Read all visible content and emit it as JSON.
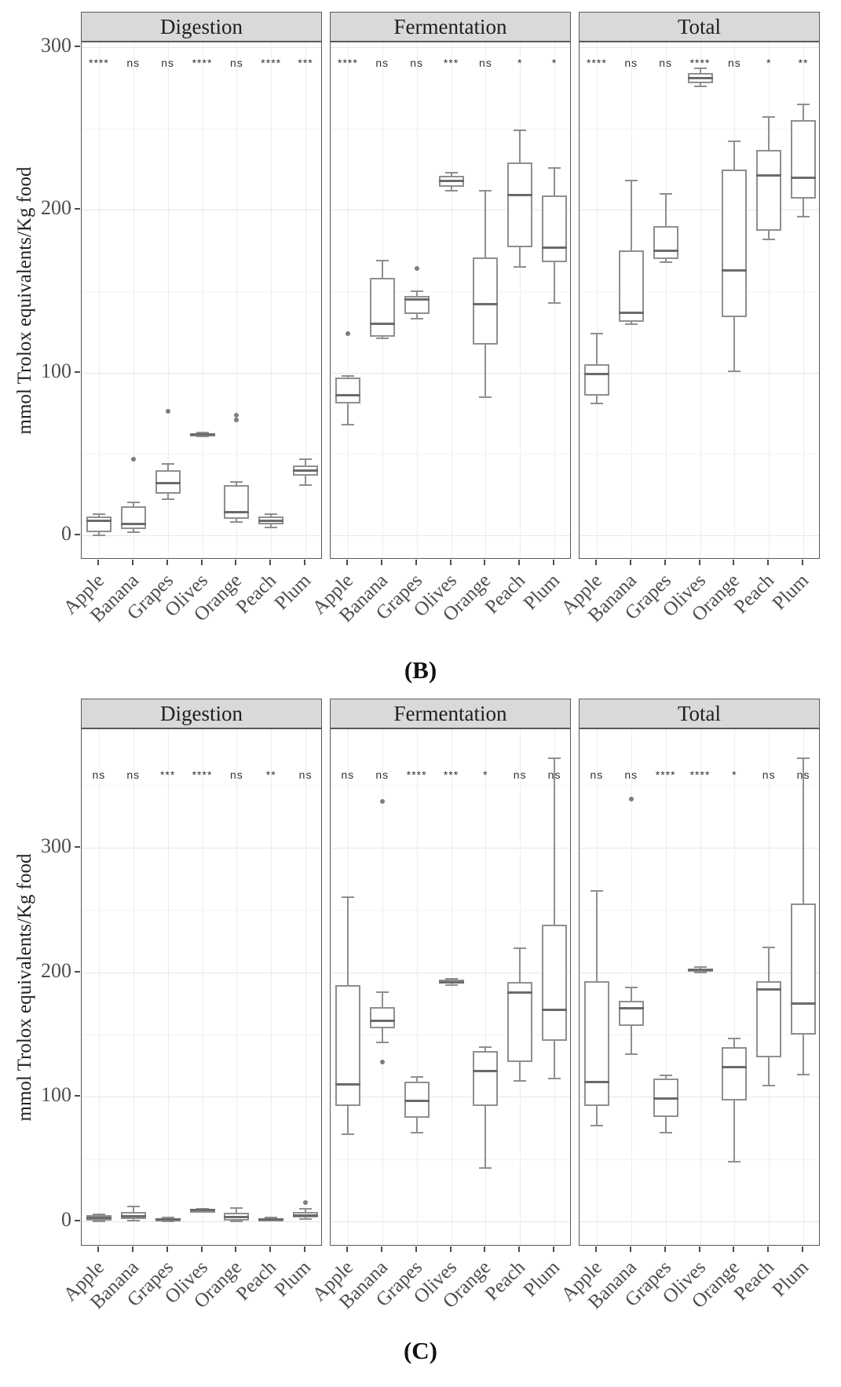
{
  "figure": {
    "ylabel": "mmol Trolox equivalents/Kg food",
    "categories": [
      "Apple",
      "Banana",
      "Grapes",
      "Olives",
      "Orange",
      "Peach",
      "Plum"
    ],
    "facet_labels": [
      "Digestion",
      "Fermentation",
      "Total"
    ]
  },
  "chart_data": [
    {
      "type": "boxplot",
      "panel_label": "(B)",
      "ylabel": "mmol Trolox equivalents/Kg food",
      "yticks": [
        0,
        100,
        200,
        300
      ],
      "ylim": [
        -15,
        303
      ],
      "sig_value": 290,
      "grid": "on",
      "facets": [
        {
          "label": "Digestion",
          "boxes": [
            {
              "category": "Apple",
              "sig": "****",
              "whislo": 0,
              "q1": 2,
              "med": 9,
              "q3": 11.5,
              "whishi": 13,
              "fliers": []
            },
            {
              "category": "Banana",
              "sig": "ns",
              "whislo": 2,
              "q1": 4,
              "med": 7,
              "q3": 18,
              "whishi": 20,
              "fliers": [
                47
              ]
            },
            {
              "category": "Grapes",
              "sig": "ns",
              "whislo": 22,
              "q1": 25.5,
              "med": 32,
              "q3": 40,
              "whishi": 44,
              "fliers": [
                76
              ]
            },
            {
              "category": "Olives",
              "sig": "****",
              "whislo": 61,
              "q1": 61.5,
              "med": 62,
              "q3": 62.5,
              "whishi": 63,
              "fliers": []
            },
            {
              "category": "Orange",
              "sig": "ns",
              "whislo": 8,
              "q1": 10,
              "med": 14,
              "q3": 31,
              "whishi": 33,
              "fliers": [
                71,
                74
              ]
            },
            {
              "category": "Peach",
              "sig": "****",
              "whislo": 5,
              "q1": 6.5,
              "med": 9,
              "q3": 11.5,
              "whishi": 13,
              "fliers": []
            },
            {
              "category": "Plum",
              "sig": "***",
              "whislo": 31,
              "q1": 36.5,
              "med": 40,
              "q3": 43,
              "whishi": 47,
              "fliers": []
            }
          ]
        },
        {
          "label": "Fermentation",
          "boxes": [
            {
              "category": "Apple",
              "sig": "****",
              "whislo": 68,
              "q1": 81,
              "med": 86,
              "q3": 97,
              "whishi": 98,
              "fliers": [
                124
              ]
            },
            {
              "category": "Banana",
              "sig": "ns",
              "whislo": 121,
              "q1": 122,
              "med": 130,
              "q3": 158,
              "whishi": 169,
              "fliers": []
            },
            {
              "category": "Grapes",
              "sig": "ns",
              "whislo": 133,
              "q1": 136,
              "med": 145,
              "q3": 147,
              "whishi": 150,
              "fliers": [
                164
              ]
            },
            {
              "category": "Olives",
              "sig": "***",
              "whislo": 212,
              "q1": 214,
              "med": 218,
              "q3": 221,
              "whishi": 223,
              "fliers": []
            },
            {
              "category": "Orange",
              "sig": "ns",
              "whislo": 85,
              "q1": 117,
              "med": 142,
              "q3": 171,
              "whishi": 212,
              "fliers": []
            },
            {
              "category": "Peach",
              "sig": "*",
              "whislo": 165,
              "q1": 177,
              "med": 209,
              "q3": 229,
              "whishi": 249,
              "fliers": []
            },
            {
              "category": "Plum",
              "sig": "*",
              "whislo": 143,
              "q1": 168,
              "med": 177,
              "q3": 209,
              "whishi": 226,
              "fliers": []
            }
          ]
        },
        {
          "label": "Total",
          "boxes": [
            {
              "category": "Apple",
              "sig": "****",
              "whislo": 81,
              "q1": 86,
              "med": 99,
              "q3": 105,
              "whishi": 124,
              "fliers": []
            },
            {
              "category": "Banana",
              "sig": "ns",
              "whislo": 130,
              "q1": 131,
              "med": 137,
              "q3": 175,
              "whishi": 218,
              "fliers": []
            },
            {
              "category": "Grapes",
              "sig": "ns",
              "whislo": 168,
              "q1": 170,
              "med": 175,
              "q3": 190,
              "whishi": 210,
              "fliers": []
            },
            {
              "category": "Olives",
              "sig": "****",
              "whislo": 276,
              "q1": 278,
              "med": 281,
              "q3": 284,
              "whishi": 287,
              "fliers": []
            },
            {
              "category": "Orange",
              "sig": "ns",
              "whislo": 101,
              "q1": 134,
              "med": 163,
              "q3": 225,
              "whishi": 242,
              "fliers": []
            },
            {
              "category": "Peach",
              "sig": "*",
              "whislo": 182,
              "q1": 187,
              "med": 221,
              "q3": 237,
              "whishi": 257,
              "fliers": []
            },
            {
              "category": "Plum",
              "sig": "**",
              "whislo": 196,
              "q1": 207,
              "med": 220,
              "q3": 255,
              "whishi": 265,
              "fliers": []
            }
          ]
        }
      ]
    },
    {
      "type": "boxplot",
      "panel_label": "(C)",
      "ylabel": "mmol Trolox equivalents/Kg food",
      "yticks": [
        0,
        100,
        200,
        300
      ],
      "ylim": [
        -20,
        395
      ],
      "sig_value": 358,
      "grid": "on",
      "facets": [
        {
          "label": "Digestion",
          "boxes": [
            {
              "category": "Apple",
              "sig": "ns",
              "whislo": 0,
              "q1": 1,
              "med": 3,
              "q3": 5,
              "whishi": 6,
              "fliers": []
            },
            {
              "category": "Banana",
              "sig": "ns",
              "whislo": 1,
              "q1": 2,
              "med": 4,
              "q3": 8,
              "whishi": 12,
              "fliers": []
            },
            {
              "category": "Grapes",
              "sig": "***",
              "whislo": 0,
              "q1": 0.5,
              "med": 1.5,
              "q3": 2.5,
              "whishi": 3,
              "fliers": []
            },
            {
              "category": "Olives",
              "sig": "****",
              "whislo": 8,
              "q1": 8.5,
              "med": 9,
              "q3": 9.5,
              "whishi": 10,
              "fliers": []
            },
            {
              "category": "Orange",
              "sig": "ns",
              "whislo": 0,
              "q1": 1,
              "med": 3.5,
              "q3": 7,
              "whishi": 11,
              "fliers": []
            },
            {
              "category": "Peach",
              "sig": "**",
              "whislo": 1,
              "q1": 1.5,
              "med": 2,
              "q3": 2.5,
              "whishi": 3,
              "fliers": []
            },
            {
              "category": "Plum",
              "sig": "ns",
              "whislo": 2,
              "q1": 3,
              "med": 5,
              "q3": 8,
              "whishi": 10,
              "fliers": [
                15
              ]
            }
          ]
        },
        {
          "label": "Fermentation",
          "boxes": [
            {
              "category": "Apple",
              "sig": "ns",
              "whislo": 70,
              "q1": 93,
              "med": 110,
              "q3": 190,
              "whishi": 260,
              "fliers": []
            },
            {
              "category": "Banana",
              "sig": "ns",
              "whislo": 144,
              "q1": 155,
              "med": 161,
              "q3": 172,
              "whishi": 184,
              "fliers": [
                128,
                337
              ]
            },
            {
              "category": "Grapes",
              "sig": "****",
              "whislo": 71,
              "q1": 83,
              "med": 97,
              "q3": 112,
              "whishi": 116,
              "fliers": []
            },
            {
              "category": "Olives",
              "sig": "***",
              "whislo": 190,
              "q1": 191,
              "med": 192,
              "q3": 194,
              "whishi": 195,
              "fliers": []
            },
            {
              "category": "Orange",
              "sig": "*",
              "whislo": 43,
              "q1": 93,
              "med": 121,
              "q3": 137,
              "whishi": 140,
              "fliers": []
            },
            {
              "category": "Peach",
              "sig": "ns",
              "whislo": 113,
              "q1": 128,
              "med": 184,
              "q3": 192,
              "whishi": 219,
              "fliers": []
            },
            {
              "category": "Plum",
              "sig": "ns",
              "whislo": 115,
              "q1": 145,
              "med": 170,
              "q3": 238,
              "whishi": 372,
              "fliers": []
            }
          ]
        },
        {
          "label": "Total",
          "boxes": [
            {
              "category": "Apple",
              "sig": "ns",
              "whislo": 77,
              "q1": 93,
              "med": 112,
              "q3": 193,
              "whishi": 265,
              "fliers": []
            },
            {
              "category": "Banana",
              "sig": "ns",
              "whislo": 134,
              "q1": 157,
              "med": 171,
              "q3": 177,
              "whishi": 188,
              "fliers": [
                339
              ]
            },
            {
              "category": "Grapes",
              "sig": "****",
              "whislo": 71,
              "q1": 84,
              "med": 99,
              "q3": 115,
              "whishi": 117,
              "fliers": []
            },
            {
              "category": "Olives",
              "sig": "****",
              "whislo": 200,
              "q1": 201,
              "med": 202,
              "q3": 203,
              "whishi": 204,
              "fliers": []
            },
            {
              "category": "Orange",
              "sig": "*",
              "whislo": 48,
              "q1": 97,
              "med": 124,
              "q3": 140,
              "whishi": 147,
              "fliers": []
            },
            {
              "category": "Peach",
              "sig": "ns",
              "whislo": 109,
              "q1": 132,
              "med": 186,
              "q3": 193,
              "whishi": 220,
              "fliers": []
            },
            {
              "category": "Plum",
              "sig": "ns",
              "whislo": 118,
              "q1": 150,
              "med": 175,
              "q3": 255,
              "whishi": 372,
              "fliers": []
            }
          ]
        }
      ]
    }
  ]
}
